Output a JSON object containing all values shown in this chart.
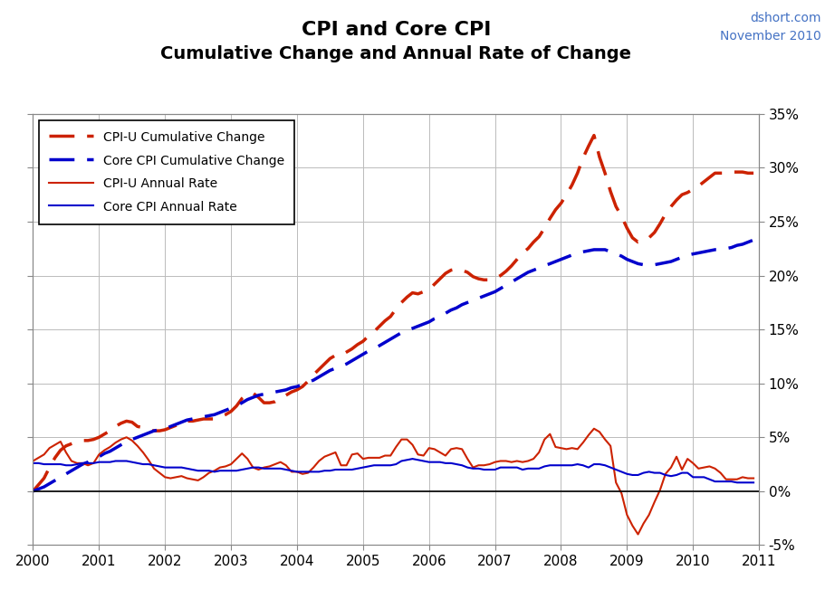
{
  "title1": "CPI and Core CPI",
  "title2": "Cumulative Change and Annual Rate of Change",
  "watermark_line1": "dshort.com",
  "watermark_line2": "November 2010",
  "watermark_color": "#4472C4",
  "xlim": [
    2000,
    2011
  ],
  "ylim": [
    -0.05,
    0.35
  ],
  "yticks": [
    -0.05,
    0.0,
    0.05,
    0.1,
    0.15,
    0.2,
    0.25,
    0.3,
    0.35
  ],
  "ytick_labels": [
    "-5%",
    "0%",
    "5%",
    "10%",
    "15%",
    "20%",
    "25%",
    "30%",
    "35%"
  ],
  "xticks": [
    2000,
    2001,
    2002,
    2003,
    2004,
    2005,
    2006,
    2007,
    2008,
    2009,
    2010,
    2011
  ],
  "cpi_cumulative_color": "#CC2200",
  "core_cpi_cumulative_color": "#0000CC",
  "cpi_annual_color": "#CC2200",
  "core_cpi_annual_color": "#0000CC",
  "bg_color": "#FFFFFF",
  "grid_color": "#BBBBBB",
  "legend_labels": [
    "CPI-U Cumulative Change",
    "Core CPI Cumulative Change",
    "CPI-U Annual Rate",
    "Core CPI Annual Rate"
  ],
  "months": [
    2000.0,
    2000.083,
    2000.167,
    2000.25,
    2000.333,
    2000.417,
    2000.5,
    2000.583,
    2000.667,
    2000.75,
    2000.833,
    2000.917,
    2001.0,
    2001.083,
    2001.167,
    2001.25,
    2001.333,
    2001.417,
    2001.5,
    2001.583,
    2001.667,
    2001.75,
    2001.833,
    2001.917,
    2002.0,
    2002.083,
    2002.167,
    2002.25,
    2002.333,
    2002.417,
    2002.5,
    2002.583,
    2002.667,
    2002.75,
    2002.833,
    2002.917,
    2003.0,
    2003.083,
    2003.167,
    2003.25,
    2003.333,
    2003.417,
    2003.5,
    2003.583,
    2003.667,
    2003.75,
    2003.833,
    2003.917,
    2004.0,
    2004.083,
    2004.167,
    2004.25,
    2004.333,
    2004.417,
    2004.5,
    2004.583,
    2004.667,
    2004.75,
    2004.833,
    2004.917,
    2005.0,
    2005.083,
    2005.167,
    2005.25,
    2005.333,
    2005.417,
    2005.5,
    2005.583,
    2005.667,
    2005.75,
    2005.833,
    2005.917,
    2006.0,
    2006.083,
    2006.167,
    2006.25,
    2006.333,
    2006.417,
    2006.5,
    2006.583,
    2006.667,
    2006.75,
    2006.833,
    2006.917,
    2007.0,
    2007.083,
    2007.167,
    2007.25,
    2007.333,
    2007.417,
    2007.5,
    2007.583,
    2007.667,
    2007.75,
    2007.833,
    2007.917,
    2008.0,
    2008.083,
    2008.167,
    2008.25,
    2008.333,
    2008.417,
    2008.5,
    2008.583,
    2008.667,
    2008.75,
    2008.833,
    2008.917,
    2009.0,
    2009.083,
    2009.167,
    2009.25,
    2009.333,
    2009.417,
    2009.5,
    2009.583,
    2009.667,
    2009.75,
    2009.833,
    2009.917,
    2010.0,
    2010.083,
    2010.167,
    2010.25,
    2010.333,
    2010.417,
    2010.5,
    2010.583,
    2010.667,
    2010.75,
    2010.833,
    2010.917
  ],
  "cpi_cumulative": [
    0.0,
    0.006,
    0.012,
    0.022,
    0.031,
    0.038,
    0.042,
    0.044,
    0.046,
    0.047,
    0.047,
    0.048,
    0.05,
    0.053,
    0.056,
    0.06,
    0.063,
    0.065,
    0.064,
    0.06,
    0.059,
    0.057,
    0.056,
    0.056,
    0.057,
    0.059,
    0.061,
    0.064,
    0.065,
    0.065,
    0.066,
    0.067,
    0.067,
    0.067,
    0.069,
    0.071,
    0.074,
    0.079,
    0.086,
    0.09,
    0.091,
    0.087,
    0.082,
    0.082,
    0.083,
    0.086,
    0.089,
    0.092,
    0.094,
    0.097,
    0.102,
    0.108,
    0.113,
    0.118,
    0.123,
    0.126,
    0.126,
    0.129,
    0.132,
    0.136,
    0.139,
    0.144,
    0.148,
    0.153,
    0.158,
    0.162,
    0.169,
    0.175,
    0.18,
    0.184,
    0.183,
    0.185,
    0.187,
    0.192,
    0.197,
    0.202,
    0.205,
    0.206,
    0.205,
    0.203,
    0.199,
    0.197,
    0.196,
    0.196,
    0.197,
    0.2,
    0.204,
    0.209,
    0.215,
    0.221,
    0.225,
    0.231,
    0.236,
    0.244,
    0.253,
    0.261,
    0.267,
    0.275,
    0.284,
    0.295,
    0.309,
    0.32,
    0.33,
    0.31,
    0.295,
    0.278,
    0.264,
    0.255,
    0.244,
    0.235,
    0.231,
    0.232,
    0.235,
    0.24,
    0.248,
    0.257,
    0.264,
    0.27,
    0.275,
    0.277,
    0.28,
    0.283,
    0.287,
    0.291,
    0.295,
    0.295,
    0.295,
    0.296,
    0.296,
    0.296,
    0.295,
    0.295
  ],
  "core_cpi_cumulative": [
    0.0,
    0.002,
    0.004,
    0.007,
    0.01,
    0.013,
    0.016,
    0.019,
    0.022,
    0.025,
    0.027,
    0.03,
    0.032,
    0.035,
    0.037,
    0.04,
    0.043,
    0.046,
    0.048,
    0.05,
    0.052,
    0.054,
    0.056,
    0.057,
    0.058,
    0.06,
    0.062,
    0.064,
    0.066,
    0.067,
    0.068,
    0.069,
    0.07,
    0.071,
    0.073,
    0.075,
    0.077,
    0.079,
    0.082,
    0.085,
    0.087,
    0.089,
    0.09,
    0.091,
    0.092,
    0.093,
    0.094,
    0.096,
    0.097,
    0.099,
    0.101,
    0.103,
    0.106,
    0.109,
    0.112,
    0.114,
    0.116,
    0.118,
    0.121,
    0.124,
    0.127,
    0.13,
    0.132,
    0.135,
    0.138,
    0.141,
    0.144,
    0.147,
    0.149,
    0.151,
    0.153,
    0.155,
    0.157,
    0.16,
    0.162,
    0.165,
    0.168,
    0.17,
    0.173,
    0.175,
    0.177,
    0.179,
    0.181,
    0.183,
    0.185,
    0.188,
    0.191,
    0.194,
    0.197,
    0.2,
    0.203,
    0.205,
    0.207,
    0.209,
    0.211,
    0.213,
    0.215,
    0.217,
    0.219,
    0.221,
    0.222,
    0.223,
    0.224,
    0.224,
    0.224,
    0.222,
    0.22,
    0.218,
    0.215,
    0.213,
    0.211,
    0.21,
    0.21,
    0.21,
    0.211,
    0.212,
    0.213,
    0.215,
    0.217,
    0.219,
    0.22,
    0.221,
    0.222,
    0.223,
    0.224,
    0.224,
    0.225,
    0.226,
    0.228,
    0.229,
    0.231,
    0.233
  ],
  "cpi_annual": [
    0.028,
    0.031,
    0.034,
    0.04,
    0.043,
    0.046,
    0.036,
    0.028,
    0.026,
    0.026,
    0.024,
    0.026,
    0.034,
    0.038,
    0.041,
    0.045,
    0.048,
    0.05,
    0.047,
    0.042,
    0.036,
    0.029,
    0.021,
    0.017,
    0.013,
    0.012,
    0.013,
    0.014,
    0.012,
    0.011,
    0.01,
    0.013,
    0.017,
    0.019,
    0.022,
    0.023,
    0.025,
    0.03,
    0.035,
    0.03,
    0.022,
    0.02,
    0.022,
    0.023,
    0.025,
    0.027,
    0.024,
    0.018,
    0.018,
    0.016,
    0.017,
    0.022,
    0.028,
    0.032,
    0.034,
    0.036,
    0.024,
    0.024,
    0.034,
    0.035,
    0.03,
    0.031,
    0.031,
    0.031,
    0.033,
    0.033,
    0.041,
    0.048,
    0.048,
    0.043,
    0.034,
    0.033,
    0.04,
    0.039,
    0.036,
    0.033,
    0.039,
    0.04,
    0.039,
    0.03,
    0.022,
    0.024,
    0.024,
    0.025,
    0.027,
    0.028,
    0.028,
    0.027,
    0.028,
    0.027,
    0.028,
    0.03,
    0.036,
    0.048,
    0.053,
    0.041,
    0.04,
    0.039,
    0.04,
    0.039,
    0.045,
    0.052,
    0.058,
    0.055,
    0.048,
    0.042,
    0.008,
    -0.002,
    -0.022,
    -0.032,
    -0.04,
    -0.03,
    -0.022,
    -0.01,
    0.001,
    0.016,
    0.022,
    0.032,
    0.02,
    0.03,
    0.026,
    0.021,
    0.022,
    0.023,
    0.021,
    0.017,
    0.011,
    0.011,
    0.011,
    0.013,
    0.012,
    0.012
  ],
  "core_cpi_annual": [
    0.026,
    0.026,
    0.025,
    0.025,
    0.025,
    0.025,
    0.024,
    0.024,
    0.025,
    0.026,
    0.026,
    0.026,
    0.027,
    0.027,
    0.027,
    0.028,
    0.028,
    0.028,
    0.027,
    0.026,
    0.025,
    0.025,
    0.024,
    0.023,
    0.022,
    0.022,
    0.022,
    0.022,
    0.021,
    0.02,
    0.019,
    0.019,
    0.019,
    0.018,
    0.019,
    0.019,
    0.019,
    0.019,
    0.02,
    0.021,
    0.022,
    0.022,
    0.021,
    0.021,
    0.021,
    0.021,
    0.02,
    0.019,
    0.018,
    0.018,
    0.018,
    0.018,
    0.018,
    0.019,
    0.019,
    0.02,
    0.02,
    0.02,
    0.02,
    0.021,
    0.022,
    0.023,
    0.024,
    0.024,
    0.024,
    0.024,
    0.025,
    0.028,
    0.029,
    0.03,
    0.029,
    0.028,
    0.027,
    0.027,
    0.027,
    0.026,
    0.026,
    0.025,
    0.024,
    0.022,
    0.021,
    0.021,
    0.02,
    0.02,
    0.02,
    0.022,
    0.022,
    0.022,
    0.022,
    0.02,
    0.021,
    0.021,
    0.021,
    0.023,
    0.024,
    0.024,
    0.024,
    0.024,
    0.024,
    0.025,
    0.024,
    0.022,
    0.025,
    0.025,
    0.024,
    0.022,
    0.02,
    0.018,
    0.016,
    0.015,
    0.015,
    0.017,
    0.018,
    0.017,
    0.017,
    0.015,
    0.014,
    0.015,
    0.017,
    0.017,
    0.013,
    0.013,
    0.013,
    0.011,
    0.009,
    0.009,
    0.009,
    0.009,
    0.008,
    0.008,
    0.008,
    0.008
  ]
}
